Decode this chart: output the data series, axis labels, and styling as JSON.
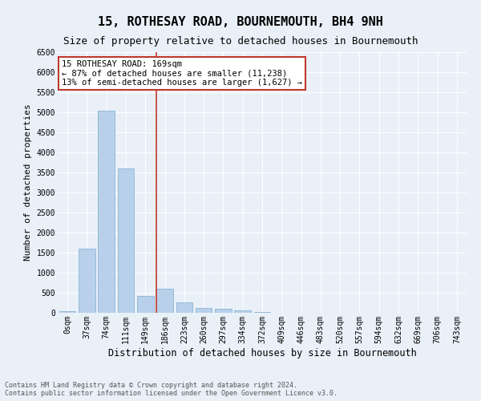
{
  "title": "15, ROTHESAY ROAD, BOURNEMOUTH, BH4 9NH",
  "subtitle": "Size of property relative to detached houses in Bournemouth",
  "xlabel": "Distribution of detached houses by size in Bournemouth",
  "ylabel": "Number of detached properties",
  "footnote1": "Contains HM Land Registry data © Crown copyright and database right 2024.",
  "footnote2": "Contains public sector information licensed under the Open Government Licence v3.0.",
  "categories": [
    "0sqm",
    "37sqm",
    "74sqm",
    "111sqm",
    "149sqm",
    "186sqm",
    "223sqm",
    "260sqm",
    "297sqm",
    "334sqm",
    "372sqm",
    "409sqm",
    "446sqm",
    "483sqm",
    "520sqm",
    "557sqm",
    "594sqm",
    "632sqm",
    "669sqm",
    "706sqm",
    "743sqm"
  ],
  "values": [
    50,
    1600,
    5050,
    3600,
    425,
    600,
    270,
    130,
    110,
    60,
    25,
    10,
    5,
    2,
    1,
    0,
    0,
    0,
    0,
    0,
    0
  ],
  "bar_color": "#b8d0ea",
  "bar_edge_color": "#7aaed0",
  "vline_color": "#c0392b",
  "vline_pos": 4.55,
  "annotation_text": "15 ROTHESAY ROAD: 169sqm\n← 87% of detached houses are smaller (11,238)\n13% of semi-detached houses are larger (1,627) →",
  "annotation_box_color": "#ffffff",
  "annotation_box_edge": "#c0392b",
  "ylim": [
    0,
    6500
  ],
  "yticks": [
    0,
    500,
    1000,
    1500,
    2000,
    2500,
    3000,
    3500,
    4000,
    4500,
    5000,
    5500,
    6000,
    6500
  ],
  "bg_color": "#eaf0f8",
  "grid_color": "#ffffff",
  "title_fontsize": 11,
  "subtitle_fontsize": 9,
  "xlabel_fontsize": 8.5,
  "ylabel_fontsize": 8,
  "tick_fontsize": 7,
  "annot_fontsize": 7.5,
  "footnote_fontsize": 6
}
